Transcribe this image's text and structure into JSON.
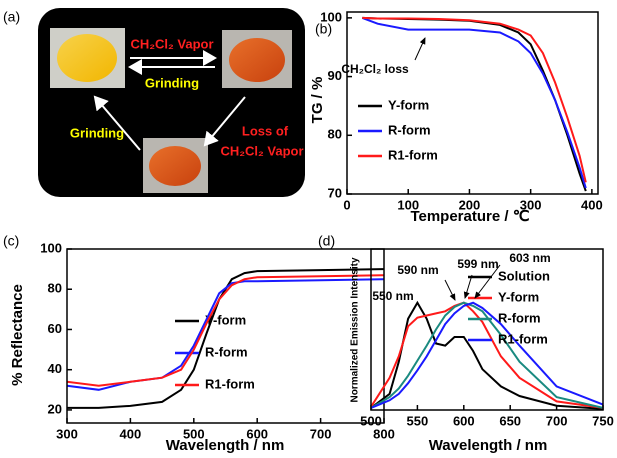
{
  "diagram": {
    "panel_label": "(a)",
    "top_arrow_label": "CH₂Cl₂ Vapor",
    "middle_arrow_label": "Grinding",
    "left_arrow_label": "Grinding",
    "right_arrow_label_1": "Loss of",
    "right_arrow_label_2": "CH₂Cl₂ Vapor"
  },
  "chart_data": [
    {
      "type": "line",
      "panel_label": "(b)",
      "xlabel": "Temperature / ℃",
      "ylabel": "TG / %",
      "annotations": [
        "CH₂Cl₂ loss"
      ],
      "legend": "lower left",
      "x": [
        25,
        50,
        100,
        150,
        200,
        250,
        280,
        300,
        320,
        340,
        360,
        380,
        390
      ],
      "xlim": [
        0,
        410
      ],
      "ylim": [
        70,
        101
      ],
      "xticks": [
        0,
        100,
        200,
        300,
        400
      ],
      "yticks": [
        70,
        80,
        90,
        100
      ],
      "series": [
        {
          "name": "Y-form",
          "color": "#000000",
          "values": [
            100,
            99.9,
            99.8,
            99.7,
            99.5,
            98.8,
            97.5,
            95.5,
            91,
            86,
            80,
            73.5,
            70.5
          ]
        },
        {
          "name": "R-form",
          "color": "#1a1aff",
          "values": [
            100,
            99,
            98,
            98,
            98,
            97.5,
            96,
            94,
            90.5,
            86,
            80.5,
            74.5,
            71
          ]
        },
        {
          "name": "R1-form",
          "color": "#ff1a1a",
          "values": [
            100,
            99.9,
            99.9,
            99.8,
            99.6,
            99,
            98,
            97,
            94,
            89,
            83,
            76.5,
            72
          ]
        }
      ]
    },
    {
      "type": "line",
      "panel_label": "(c)",
      "xlabel": "Wavelength / nm",
      "ylabel": "% Reflectance",
      "legend": "center right",
      "x": [
        300,
        350,
        400,
        450,
        480,
        500,
        520,
        540,
        560,
        580,
        600,
        700,
        800
      ],
      "xlim": [
        300,
        800
      ],
      "ylim": [
        13.5,
        100
      ],
      "xticks": [
        300,
        400,
        500,
        600,
        700,
        800
      ],
      "yticks": [
        20,
        40,
        60,
        80,
        100
      ],
      "series": [
        {
          "name": "Y-form",
          "color": "#000000",
          "values": [
            21,
            21,
            22,
            24,
            30,
            40,
            58,
            75,
            85,
            88,
            89,
            89.5,
            90
          ]
        },
        {
          "name": "R-form",
          "color": "#1a1aff",
          "values": [
            32,
            30,
            34,
            36,
            42,
            52,
            65,
            78,
            83,
            84,
            84,
            84.5,
            85
          ]
        },
        {
          "name": "R1-form",
          "color": "#ff1a1a",
          "values": [
            34,
            32,
            34,
            36,
            40,
            50,
            63,
            75,
            82,
            85,
            86,
            86.5,
            87
          ]
        }
      ]
    },
    {
      "type": "line",
      "panel_label": "(d)",
      "xlabel": "Wavelength / nm",
      "ylabel": "Normalized Emission Intensity",
      "annotations": [
        "550 nm",
        "590 nm",
        "599 nm",
        "603 nm"
      ],
      "legend": "upper right",
      "x": [
        500,
        520,
        530,
        540,
        550,
        560,
        570,
        580,
        590,
        600,
        610,
        620,
        640,
        660,
        700,
        750
      ],
      "xlim": [
        500,
        750
      ],
      "ylim": [
        0,
        1.5
      ],
      "xticks": [
        500,
        550,
        600,
        650,
        700,
        750
      ],
      "series": [
        {
          "name": "Solution",
          "color": "#000000",
          "values": [
            0.02,
            0.15,
            0.45,
            0.85,
            1.0,
            0.85,
            0.62,
            0.6,
            0.68,
            0.68,
            0.55,
            0.38,
            0.22,
            0.13,
            0.04,
            0.01
          ]
        },
        {
          "name": "Y-form",
          "color": "#ff1a1a",
          "values": [
            0.03,
            0.3,
            0.5,
            0.78,
            0.86,
            0.88,
            0.9,
            0.92,
            0.97,
            1.0,
            0.92,
            0.82,
            0.5,
            0.3,
            0.08,
            0.02
          ]
        },
        {
          "name": "R-form",
          "color": "#1a8a80",
          "values": [
            0.02,
            0.12,
            0.2,
            0.32,
            0.46,
            0.6,
            0.75,
            0.88,
            0.96,
            1.0,
            0.97,
            0.92,
            0.7,
            0.45,
            0.12,
            0.02
          ]
        },
        {
          "name": "R1-form",
          "color": "#1a1aff",
          "values": [
            0.02,
            0.09,
            0.15,
            0.25,
            0.37,
            0.5,
            0.65,
            0.8,
            0.9,
            0.97,
            1.0,
            0.95,
            0.8,
            0.6,
            0.22,
            0.05
          ]
        }
      ]
    }
  ]
}
